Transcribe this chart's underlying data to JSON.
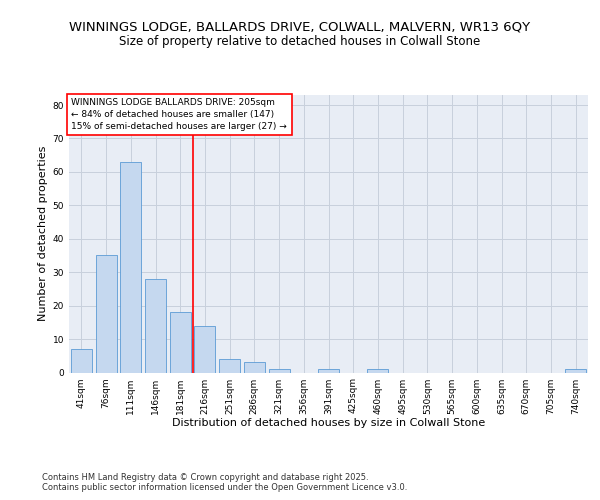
{
  "title": "WINNINGS LODGE, BALLARDS DRIVE, COLWALL, MALVERN, WR13 6QY",
  "subtitle": "Size of property relative to detached houses in Colwall Stone",
  "xlabel": "Distribution of detached houses by size in Colwall Stone",
  "ylabel": "Number of detached properties",
  "categories": [
    "41sqm",
    "76sqm",
    "111sqm",
    "146sqm",
    "181sqm",
    "216sqm",
    "251sqm",
    "286sqm",
    "321sqm",
    "356sqm",
    "391sqm",
    "425sqm",
    "460sqm",
    "495sqm",
    "530sqm",
    "565sqm",
    "600sqm",
    "635sqm",
    "670sqm",
    "705sqm",
    "740sqm"
  ],
  "values": [
    7,
    35,
    63,
    28,
    18,
    14,
    4,
    3,
    1,
    0,
    1,
    0,
    1,
    0,
    0,
    0,
    0,
    0,
    0,
    0,
    1
  ],
  "bar_color": "#c5d8ef",
  "bar_edge_color": "#5b9bd5",
  "vline_x": 4.5,
  "vline_color": "red",
  "annotation_text": "WINNINGS LODGE BALLARDS DRIVE: 205sqm\n← 84% of detached houses are smaller (147)\n15% of semi-detached houses are larger (27) →",
  "annotation_box_color": "white",
  "annotation_box_edge_color": "red",
  "ylim": [
    0,
    83
  ],
  "yticks": [
    0,
    10,
    20,
    30,
    40,
    50,
    60,
    70,
    80
  ],
  "grid_color": "#c8d0dc",
  "background_color": "#e8edf5",
  "footer": "Contains HM Land Registry data © Crown copyright and database right 2025.\nContains public sector information licensed under the Open Government Licence v3.0.",
  "title_fontsize": 9.5,
  "subtitle_fontsize": 8.5,
  "axis_label_fontsize": 8,
  "tick_fontsize": 6.5,
  "annotation_fontsize": 6.5,
  "footer_fontsize": 6
}
